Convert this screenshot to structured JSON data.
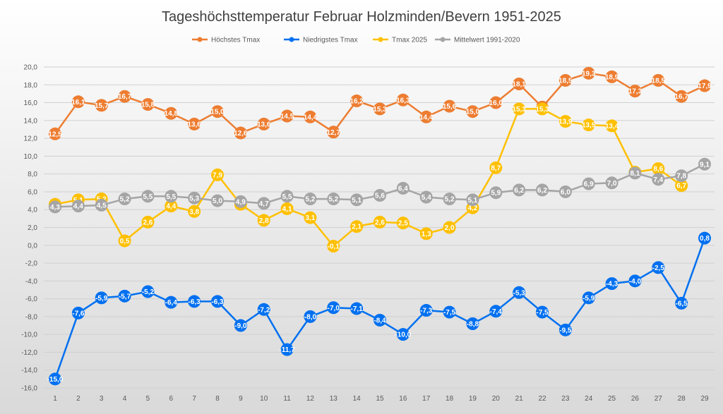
{
  "chart_data": {
    "type": "line",
    "title": "Tageshöchsttemperatur Februar Holzminden/Bevern 1951-2025",
    "xlabel": "",
    "ylabel": "",
    "ylim": [
      -16,
      20
    ],
    "ytick_step": 2,
    "grid": true,
    "legend_position": "top",
    "categories": [
      "1",
      "2",
      "3",
      "4",
      "5",
      "6",
      "7",
      "8",
      "9",
      "10",
      "11",
      "12",
      "13",
      "14",
      "15",
      "16",
      "17",
      "18",
      "19",
      "20",
      "21",
      "22",
      "23",
      "24",
      "25",
      "26",
      "27",
      "28",
      "29"
    ],
    "series": [
      {
        "name": "Höchstes Tmax",
        "color": "#ED7D31",
        "values": [
          12.5,
          16.1,
          15.7,
          16.7,
          15.8,
          14.8,
          13.6,
          15.0,
          12.6,
          13.6,
          14.5,
          14.4,
          12.7,
          16.2,
          15.3,
          16.3,
          14.4,
          15.6,
          15.0,
          16.0,
          18.1,
          15.5,
          18.5,
          19.3,
          18.9,
          17.3,
          18.5,
          16.7,
          17.9
        ]
      },
      {
        "name": "Niedrigstes Tmax",
        "color": "#0070F0",
        "values": [
          -15.0,
          -7.6,
          -5.9,
          -5.7,
          -5.2,
          -6.4,
          -6.3,
          -6.3,
          -9.0,
          -7.2,
          -11.7,
          -8.0,
          -7.0,
          -7.1,
          -8.4,
          -10.0,
          -7.3,
          -7.5,
          -8.8,
          -7.4,
          -5.3,
          -7.5,
          -9.5,
          -5.9,
          -4.3,
          -4.0,
          -2.5,
          -6.5,
          0.8
        ]
      },
      {
        "name": "Tmax 2025",
        "color": "#FFC000",
        "values": [
          4.6,
          5.1,
          5.2,
          0.5,
          2.6,
          4.4,
          3.8,
          7.9,
          4.6,
          2.8,
          4.1,
          3.1,
          -0.1,
          2.1,
          2.6,
          2.5,
          1.3,
          2.0,
          4.2,
          8.7,
          15.3,
          15.3,
          13.9,
          13.5,
          13.4,
          8.2,
          8.6,
          6.7,
          null
        ]
      },
      {
        "name": "Mittelwert 1991-2020",
        "color": "#A5A5A5",
        "values": [
          4.3,
          4.4,
          4.5,
          5.2,
          5.5,
          5.5,
          5.3,
          5.0,
          4.9,
          4.7,
          5.5,
          5.2,
          5.2,
          5.1,
          5.6,
          6.4,
          5.4,
          5.2,
          5.1,
          5.9,
          6.2,
          6.2,
          6.0,
          6.9,
          7.0,
          8.1,
          7.4,
          7.8,
          9.1
        ]
      }
    ]
  }
}
